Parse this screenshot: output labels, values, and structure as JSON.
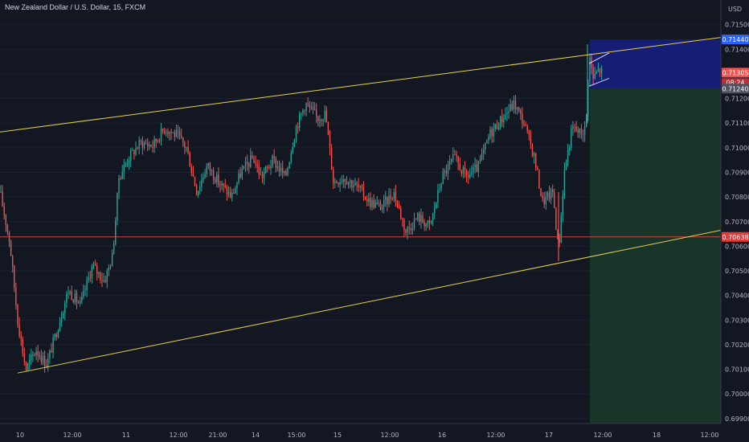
{
  "header": {
    "symbol_title": "New Zealand Dollar / U.S. Dollar, 15, FXCM",
    "currency": "USD"
  },
  "chart_data": {
    "type": "candlestick",
    "title": "New Zealand Dollar / U.S. Dollar, 15, FXCM",
    "y_unit": "USD",
    "ylim": [
      0.6988,
      0.716
    ],
    "y_ticks": [
      "0.71500",
      "0.71400",
      "0.71300",
      "0.71200",
      "0.71100",
      "0.71000",
      "0.70900",
      "0.70800",
      "0.70700",
      "0.70600",
      "0.70500",
      "0.70400",
      "0.70300",
      "0.70200",
      "0.70100",
      "0.70000",
      "0.69900"
    ],
    "x_ticks": [
      "10",
      "12:00",
      "11",
      "12:00",
      "21:00",
      "14",
      "15:00",
      "15",
      "12:00",
      "16",
      "12:00",
      "17",
      "12:00",
      "18",
      "12:00"
    ],
    "price_path": [
      [
        0,
        0.7082
      ],
      [
        12,
        0.7062
      ],
      [
        22,
        0.703
      ],
      [
        32,
        0.701
      ],
      [
        45,
        0.7018
      ],
      [
        58,
        0.7012
      ],
      [
        70,
        0.7025
      ],
      [
        85,
        0.7042
      ],
      [
        100,
        0.7036
      ],
      [
        115,
        0.7052
      ],
      [
        130,
        0.7046
      ],
      [
        140,
        0.7056
      ],
      [
        148,
        0.7088
      ],
      [
        160,
        0.7096
      ],
      [
        175,
        0.7102
      ],
      [
        190,
        0.7101
      ],
      [
        205,
        0.7108
      ],
      [
        220,
        0.7105
      ],
      [
        232,
        0.71
      ],
      [
        245,
        0.7082
      ],
      [
        258,
        0.7093
      ],
      [
        272,
        0.7086
      ],
      [
        288,
        0.708
      ],
      [
        300,
        0.709
      ],
      [
        315,
        0.7096
      ],
      [
        325,
        0.7088
      ],
      [
        340,
        0.7095
      ],
      [
        355,
        0.7088
      ],
      [
        368,
        0.7108
      ],
      [
        380,
        0.7118
      ],
      [
        395,
        0.7112
      ],
      [
        405,
        0.7114
      ],
      [
        415,
        0.7086
      ],
      [
        428,
        0.7088
      ],
      [
        445,
        0.7084
      ],
      [
        460,
        0.7078
      ],
      [
        475,
        0.7076
      ],
      [
        490,
        0.7082
      ],
      [
        505,
        0.7066
      ],
      [
        520,
        0.7072
      ],
      [
        535,
        0.7068
      ],
      [
        550,
        0.7088
      ],
      [
        565,
        0.7096
      ],
      [
        580,
        0.7088
      ],
      [
        595,
        0.7092
      ],
      [
        610,
        0.7106
      ],
      [
        625,
        0.7112
      ],
      [
        640,
        0.7118
      ],
      [
        652,
        0.711
      ],
      [
        665,
        0.7096
      ],
      [
        675,
        0.7078
      ],
      [
        688,
        0.7082
      ],
      [
        695,
        0.7058
      ],
      [
        702,
        0.709
      ],
      [
        712,
        0.7108
      ],
      [
        722,
        0.7106
      ],
      [
        729,
        0.7108
      ],
      [
        733,
        0.7138
      ],
      [
        738,
        0.7128
      ],
      [
        745,
        0.7132
      ],
      [
        750,
        0.71305
      ]
    ],
    "current_price": "0.71305",
    "countdown": "08:24",
    "horizontal_level": "0.70638",
    "target_level": "0.71440",
    "stop_level": "0.71240",
    "colors": {
      "background": "#131722",
      "up": "#26a69a",
      "down": "#ef5350",
      "trendline": "#e8d14a",
      "level": "#e53935",
      "target_zone": "#161e7a",
      "stop_zone": "#1b3a2a",
      "target_label": "#2962ff",
      "stop_label": "#50535e"
    }
  }
}
